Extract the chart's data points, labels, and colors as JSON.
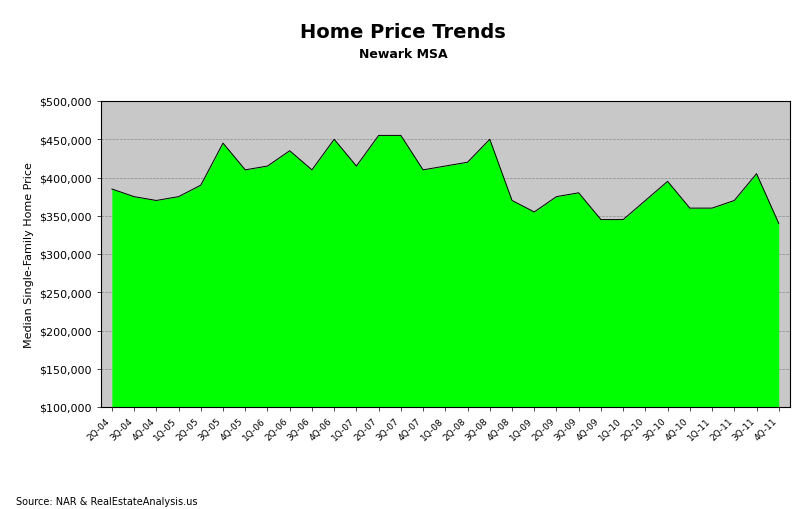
{
  "title": "Home Price Trends",
  "subtitle": "Newark MSA",
  "ylabel": "Median Single-Family Home Price",
  "source": "Source: NAR & RealEstateAnalysis.us",
  "ylim": [
    100000,
    500000
  ],
  "yticks": [
    100000,
    150000,
    200000,
    250000,
    300000,
    350000,
    400000,
    450000,
    500000
  ],
  "fill_color": "#00ff00",
  "line_color": "#000000",
  "bg_color": "#ffffff",
  "plot_bg_color": "#c8c8c8",
  "border_color": "#000000",
  "labels": [
    "2Q-04",
    "3Q-04",
    "4Q-04",
    "1Q-05",
    "2Q-05",
    "3Q-05",
    "4Q-05",
    "1Q-06",
    "2Q-06",
    "3Q-06",
    "4Q-06",
    "1Q-07",
    "2Q-07",
    "3Q-07",
    "4Q-07",
    "1Q-08",
    "2Q-08",
    "3Q-08",
    "4Q-08",
    "1Q-09",
    "2Q-09",
    "3Q-09",
    "4Q-09",
    "1Q-10",
    "2Q-10",
    "3Q-10",
    "4Q-10",
    "1Q-11",
    "2Q-11",
    "3Q-11",
    "4Q-11"
  ],
  "values": [
    385000,
    375000,
    370000,
    375000,
    390000,
    445000,
    410000,
    415000,
    435000,
    410000,
    450000,
    415000,
    455000,
    455000,
    410000,
    415000,
    420000,
    450000,
    370000,
    355000,
    375000,
    380000,
    345000,
    345000,
    370000,
    395000,
    360000,
    360000,
    370000,
    405000,
    340000
  ],
  "title_fontsize": 14,
  "subtitle_fontsize": 9,
  "ylabel_fontsize": 8,
  "tick_fontsize": 8,
  "source_fontsize": 7,
  "xtick_fontsize": 6.5
}
